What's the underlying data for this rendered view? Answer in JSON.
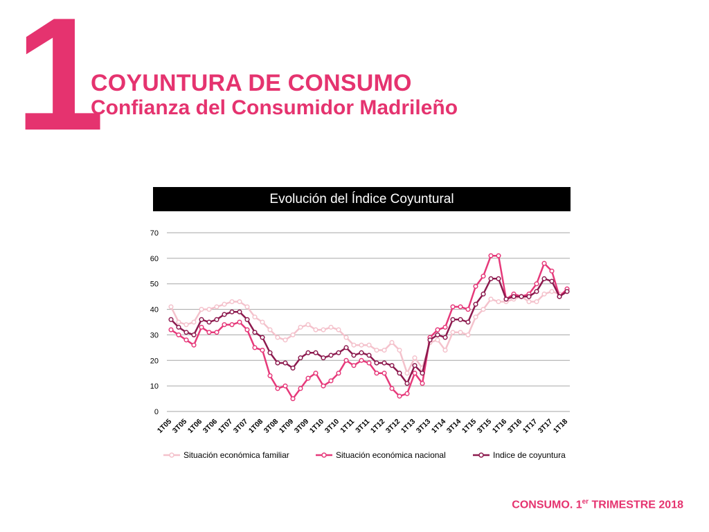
{
  "header": {
    "number": "1",
    "title": "COYUNTURA DE CONSUMO",
    "subtitle": "Confianza del Consumidor Madrileño"
  },
  "chart_header": "Evolución del Índice Coyuntural",
  "footer": {
    "prefix": "CONSUMO. 1",
    "sup": "er",
    "suffix": " TRIMESTRE 2018"
  },
  "colors": {
    "brand": "#e5336f",
    "familiar": "#f4c2cc",
    "nacional": "#e6397a",
    "indice": "#8c1a4e"
  },
  "chart_data": {
    "type": "line",
    "title": "Evolución del Índice Coyuntural",
    "xlabel": "",
    "ylabel": "",
    "ylim": [
      0,
      70
    ],
    "yticks": [
      0,
      10,
      20,
      30,
      40,
      50,
      60,
      70
    ],
    "grid": true,
    "legend": "bottom",
    "x_labels": [
      "1T05",
      "3T05",
      "1T06",
      "3T06",
      "1T07",
      "3T07",
      "1T08",
      "3T08",
      "1T09",
      "3T09",
      "1T10",
      "3T10",
      "1T11",
      "3T11",
      "1T12",
      "3T12",
      "1T13",
      "3T13",
      "1T14",
      "3T14",
      "1T15",
      "3T15",
      "1T16",
      "3T16",
      "1T17",
      "3T17",
      "1T18"
    ],
    "series": [
      {
        "name": "Situación económica familiar",
        "color": "#f4c2cc",
        "values": [
          41,
          35,
          34,
          35,
          40,
          40,
          41,
          42,
          43,
          43,
          41,
          37,
          35,
          32,
          29,
          28,
          30,
          33,
          34,
          32,
          32,
          33,
          32,
          29,
          26,
          26,
          26,
          24,
          24,
          27,
          24,
          15,
          21,
          17,
          27,
          28,
          24,
          31,
          31,
          30,
          37,
          40,
          44,
          43,
          43,
          44,
          45,
          43,
          43,
          46,
          47,
          46,
          47
        ]
      },
      {
        "name": "Situación económica nacional",
        "color": "#e6397a",
        "values": [
          32,
          30,
          28,
          26,
          33,
          31,
          31,
          34,
          34,
          35,
          32,
          25,
          24,
          14,
          9,
          10,
          5,
          9,
          13,
          15,
          10,
          12,
          15,
          20,
          18,
          20,
          19,
          15,
          15,
          9,
          6,
          7,
          15,
          11,
          29,
          32,
          33,
          41,
          41,
          40,
          49,
          53,
          61,
          61,
          44,
          46,
          45,
          46,
          50,
          58,
          55,
          45,
          48
        ]
      },
      {
        "name": "Indice de coyuntura",
        "color": "#8c1a4e",
        "values": [
          36,
          33,
          31,
          30,
          36,
          35,
          36,
          38,
          39,
          39,
          36,
          31,
          29,
          23,
          19,
          19,
          17,
          21,
          23,
          23,
          21,
          22,
          23,
          25,
          22,
          23,
          22,
          19,
          19,
          18,
          15,
          11,
          18,
          15,
          28,
          30,
          29,
          36,
          36,
          35,
          42,
          46,
          52,
          52,
          44,
          45,
          45,
          45,
          47,
          52,
          51,
          45,
          47
        ]
      }
    ]
  }
}
